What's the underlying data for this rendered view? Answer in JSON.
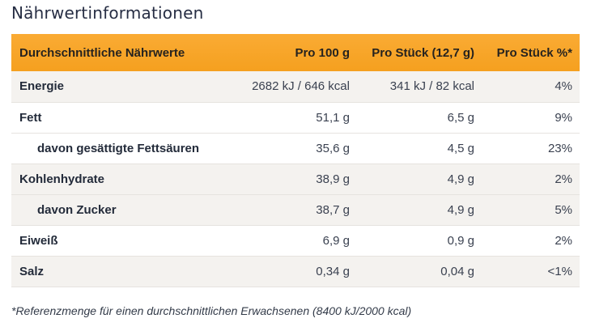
{
  "page": {
    "title": "Nährwertinformationen",
    "footnote": "*Referenzmenge für einen durchschnittlichen Erwachsenen (8400 kJ/2000 kcal)"
  },
  "colors": {
    "accent_orange": "#F7A62A",
    "accent_orange_dark": "#F5A01F",
    "row_shade": "#F4F2EF",
    "row_border": "#E6E3DF",
    "heading_text": "#272E44",
    "label_text": "#232B3A",
    "value_text": "#3A4150"
  },
  "table": {
    "columns": [
      "Durchschnittliche Nährwerte",
      "Pro 100 g",
      "Pro Stück (12,7 g)",
      "Pro Stück %*"
    ],
    "rows": [
      {
        "label": "Energie",
        "per_100g": "2682 kJ / 646 kcal",
        "per_piece": "341 kJ / 82 kcal",
        "percent": "4%"
      },
      {
        "label": "Fett",
        "per_100g": "51,1 g",
        "per_piece": "6,5 g",
        "percent": "9%"
      },
      {
        "label": "davon gesättigte Fettsäuren",
        "per_100g": "35,6 g",
        "per_piece": "4,5 g",
        "percent": "23%"
      },
      {
        "label": "Kohlenhydrate",
        "per_100g": "38,9 g",
        "per_piece": "4,9 g",
        "percent": "2%"
      },
      {
        "label": "davon Zucker",
        "per_100g": "38,7 g",
        "per_piece": "4,9 g",
        "percent": "5%"
      },
      {
        "label": "Eiweiß",
        "per_100g": "6,9 g",
        "per_piece": "0,9 g",
        "percent": "2%"
      },
      {
        "label": "Salz",
        "per_100g": "0,34 g",
        "per_piece": "0,04 g",
        "percent": "<1%"
      }
    ]
  }
}
